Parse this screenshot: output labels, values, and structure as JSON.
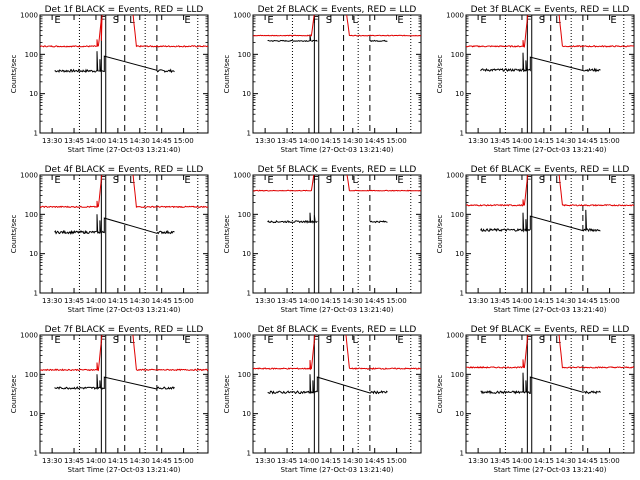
{
  "start_time_label": "Start Time (27-Oct-03 13:21:40)",
  "y_axis_label": "Counts/sec",
  "x_tick_labels": [
    "13:30",
    "13:45",
    "14:00",
    "14:15",
    "14:30",
    "14:45",
    "15:00"
  ],
  "y_tick_labels": [
    "1",
    "10",
    "100",
    "1000"
  ],
  "chart_data": [
    {
      "type": "line",
      "title": "Det 1f BLACK = Events, RED = LLD",
      "markers": {
        "E1": 12.0,
        "F": 43.0,
        "S": 52.0,
        "L": 63.0,
        "E2": 101.0
      },
      "vlines": {
        "dotted": [
          27,
          72,
          108
        ],
        "solid": [
          42,
          45
        ],
        "dashed": [
          58,
          80
        ]
      },
      "series": [
        {
          "name": "Events",
          "color": "#000000",
          "base": 38,
          "noise": 0.07,
          "spikes": [
            [
              39,
              120
            ],
            [
              41,
              75
            ],
            [
              44,
              90
            ]
          ]
        },
        {
          "name": "LLD",
          "color": "#e00000",
          "base": 160,
          "noise": 0.035,
          "spikes": [
            [
              39,
              240
            ],
            [
              42,
              220
            ]
          ]
        }
      ],
      "xlim": [
        0,
        115
      ],
      "ylim": [
        1,
        1000
      ]
    },
    {
      "type": "line",
      "title": "Det 2f BLACK = Events, RED = LLD",
      "markers": {
        "E1": 12.0,
        "F": 43.0,
        "S": 52.0,
        "L": 70.0,
        "E2": 101.0
      },
      "vlines": {
        "dotted": [
          27,
          72,
          108
        ],
        "solid": [
          42,
          45
        ],
        "dashed": [
          62,
          80
        ]
      },
      "series": [
        {
          "name": "Events",
          "color": "#000000",
          "base": 220,
          "noise": 0.03,
          "spikes": [
            [
              39,
              320
            ]
          ]
        },
        {
          "name": "LLD",
          "color": "#e00000",
          "base": 300,
          "noise": 0.02,
          "spikes": [
            [
              44,
              1500
            ]
          ]
        }
      ],
      "xlim": [
        0,
        115
      ],
      "ylim": [
        1,
        1000
      ]
    },
    {
      "type": "line",
      "title": "Det 3f BLACK = Events, RED = LLD",
      "markers": {
        "E1": 12.0,
        "F": 43.0,
        "S": 52.0,
        "L": 63.0,
        "E2": 101.0
      },
      "vlines": {
        "dotted": [
          27,
          72,
          108
        ],
        "solid": [
          42,
          45
        ],
        "dashed": [
          58,
          80
        ]
      },
      "series": [
        {
          "name": "Events",
          "color": "#000000",
          "base": 40,
          "noise": 0.07,
          "spikes": [
            [
              39,
              110
            ],
            [
              41,
              70
            ],
            [
              44,
              85
            ]
          ]
        },
        {
          "name": "LLD",
          "color": "#e00000",
          "base": 160,
          "noise": 0.035,
          "spikes": [
            [
              39,
              230
            ]
          ]
        }
      ],
      "xlim": [
        0,
        115
      ],
      "ylim": [
        1,
        1000
      ]
    },
    {
      "type": "line",
      "title": "Det 4f BLACK = Events, RED = LLD",
      "markers": {
        "E1": 12.0,
        "F": 43.0,
        "S": 52.0,
        "L": 63.0,
        "E2": 101.0
      },
      "vlines": {
        "dotted": [
          27,
          72,
          108
        ],
        "solid": [
          42,
          45
        ],
        "dashed": [
          58,
          80
        ]
      },
      "series": [
        {
          "name": "Events",
          "color": "#000000",
          "base": 35,
          "noise": 0.07,
          "spikes": [
            [
              39,
              100
            ],
            [
              41,
              70
            ],
            [
              44,
              80
            ]
          ]
        },
        {
          "name": "LLD",
          "color": "#e00000",
          "base": 155,
          "noise": 0.035,
          "spikes": [
            [
              39,
              220
            ]
          ]
        }
      ],
      "xlim": [
        0,
        115
      ],
      "ylim": [
        1,
        1000
      ]
    },
    {
      "type": "line",
      "title": "Det 5f BLACK = Events, RED = LLD",
      "markers": {
        "E1": 12.0,
        "F": 43.0,
        "S": 52.0,
        "L": 70.0,
        "E2": 101.0
      },
      "vlines": {
        "dotted": [
          27,
          72,
          108
        ],
        "solid": [
          42,
          45
        ],
        "dashed": [
          62,
          80
        ]
      },
      "series": [
        {
          "name": "Events",
          "color": "#000000",
          "base": 65,
          "noise": 0.05,
          "spikes": [
            [
              39,
              110
            ],
            [
              42,
              95
            ]
          ]
        },
        {
          "name": "LLD",
          "color": "#e00000",
          "base": 400,
          "noise": 0.02,
          "spikes": []
        }
      ],
      "xlim": [
        0,
        115
      ],
      "ylim": [
        1,
        1000
      ]
    },
    {
      "type": "line",
      "title": "Det 6f BLACK = Events, RED = LLD",
      "markers": {
        "E1": 12.0,
        "F": 43.0,
        "S": 52.0,
        "L": 63.0,
        "E2": 101.0
      },
      "vlines": {
        "dotted": [
          27,
          72,
          108
        ],
        "solid": [
          42,
          45
        ],
        "dashed": [
          58,
          80
        ]
      },
      "series": [
        {
          "name": "Events",
          "color": "#000000",
          "base": 40,
          "noise": 0.07,
          "spikes": [
            [
              39,
              110
            ],
            [
              41,
              75
            ],
            [
              44,
              90
            ],
            [
              82,
              130
            ]
          ]
        },
        {
          "name": "LLD",
          "color": "#e00000",
          "base": 170,
          "noise": 0.035,
          "spikes": [
            [
              39,
              240
            ]
          ]
        }
      ],
      "xlim": [
        0,
        115
      ],
      "ylim": [
        1,
        1000
      ]
    },
    {
      "type": "line",
      "title": "Det 7f BLACK = Events, RED = LLD",
      "markers": {
        "E1": 12.0,
        "F": 43.0,
        "S": 52.0,
        "L": 63.0,
        "E2": 101.0
      },
      "vlines": {
        "dotted": [
          27,
          72,
          108
        ],
        "solid": [
          42,
          45
        ],
        "dashed": [
          58,
          80
        ]
      },
      "series": [
        {
          "name": "Events",
          "color": "#000000",
          "base": 45,
          "noise": 0.06,
          "spikes": [
            [
              39,
              100
            ],
            [
              41,
              70
            ],
            [
              44,
              85
            ]
          ]
        },
        {
          "name": "LLD",
          "color": "#e00000",
          "base": 130,
          "noise": 0.035,
          "spikes": [
            [
              39,
              200
            ]
          ]
        }
      ],
      "xlim": [
        0,
        115
      ],
      "ylim": [
        1,
        1000
      ]
    },
    {
      "type": "line",
      "title": "Det 8f BLACK = Events, RED = LLD",
      "markers": {
        "E1": 12.0,
        "F": 43.0,
        "S": 52.0,
        "L": 70.0,
        "E2": 101.0
      },
      "vlines": {
        "dotted": [
          27,
          72,
          108
        ],
        "solid": [
          42,
          45
        ],
        "dashed": [
          62,
          80
        ]
      },
      "series": [
        {
          "name": "Events",
          "color": "#000000",
          "base": 35,
          "noise": 0.07,
          "spikes": [
            [
              39,
              100
            ],
            [
              41,
              70
            ],
            [
              44,
              85
            ]
          ]
        },
        {
          "name": "LLD",
          "color": "#e00000",
          "base": 140,
          "noise": 0.035,
          "spikes": [
            [
              39,
              230
            ]
          ]
        }
      ],
      "xlim": [
        0,
        115
      ],
      "ylim": [
        1,
        1000
      ]
    },
    {
      "type": "line",
      "title": "Det 9f BLACK = Events, RED = LLD",
      "markers": {
        "E1": 12.0,
        "F": 43.0,
        "S": 52.0,
        "L": 63.0,
        "E2": 101.0
      },
      "vlines": {
        "dotted": [
          27,
          72,
          108
        ],
        "solid": [
          42,
          45
        ],
        "dashed": [
          58,
          80
        ]
      },
      "series": [
        {
          "name": "Events",
          "color": "#000000",
          "base": 35,
          "noise": 0.07,
          "spikes": [
            [
              39,
              110
            ],
            [
              41,
              70
            ],
            [
              44,
              85
            ]
          ]
        },
        {
          "name": "LLD",
          "color": "#e00000",
          "base": 150,
          "noise": 0.035,
          "spikes": [
            [
              39,
              240
            ]
          ]
        }
      ],
      "xlim": [
        0,
        115
      ],
      "ylim": [
        1,
        1000
      ]
    }
  ]
}
